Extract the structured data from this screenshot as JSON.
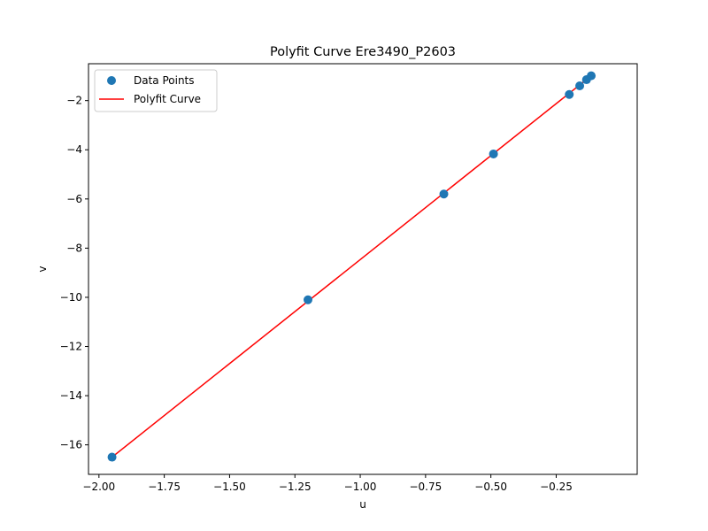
{
  "chart_data": {
    "type": "scatter",
    "title": "Polyfit Curve Ere3490_P2603",
    "xlabel": "u",
    "ylabel": "v",
    "xlim": [
      -2.04,
      0.06
    ],
    "ylim": [
      -17.2,
      -0.5
    ],
    "xticks": [
      -2.0,
      -1.75,
      -1.5,
      -1.25,
      -1.0,
      -0.75,
      -0.5,
      -0.25
    ],
    "xtick_labels": [
      "−2.00",
      "−1.75",
      "−1.50",
      "−1.25",
      "−1.00",
      "−0.75",
      "−0.50",
      "−0.25"
    ],
    "yticks": [
      -16,
      -14,
      -12,
      -10,
      -8,
      -6,
      -4,
      -2
    ],
    "ytick_labels": [
      "−16",
      "−14",
      "−12",
      "−10",
      "−8",
      "−6",
      "−4",
      "−2"
    ],
    "grid": false,
    "legend_position": "top-left",
    "series": [
      {
        "name": "Data Points",
        "kind": "scatter",
        "color": "#1f77b4",
        "x": [
          -1.95,
          -1.2,
          -0.68,
          -0.49,
          -0.2,
          -0.16,
          -0.134,
          -0.116
        ],
        "y": [
          -16.5,
          -10.1,
          -5.8,
          -4.17,
          -1.75,
          -1.4,
          -1.15,
          -0.99
        ]
      },
      {
        "name": "Polyfit Curve",
        "kind": "line",
        "color": "#ff0000",
        "x": [
          -1.95,
          -0.116
        ],
        "y": [
          -16.5,
          -0.99
        ]
      }
    ]
  }
}
